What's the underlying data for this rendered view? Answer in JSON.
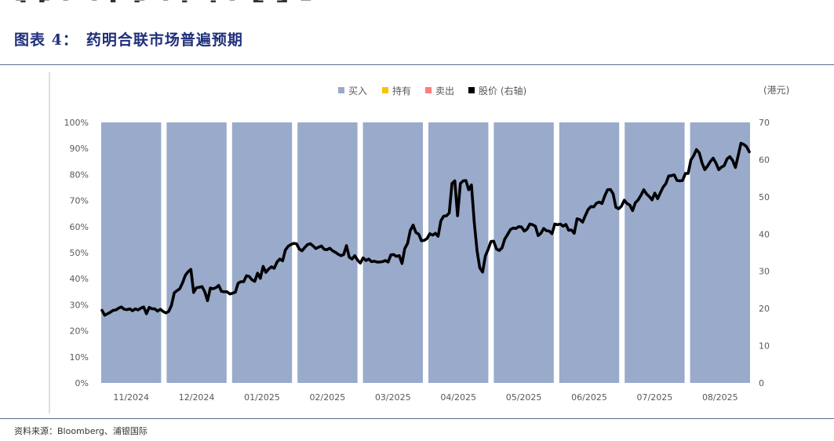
{
  "header": {
    "figure_label": "图表 4：",
    "title": "药明合联市场普遍预期"
  },
  "footer": {
    "source": "资料来源：Bloomberg、浦银国际"
  },
  "colors": {
    "buy": "#99AACB",
    "hold": "#FFC000",
    "sell": "#FF7C80",
    "price": "#000000",
    "title": "#1F2F7A"
  },
  "chart_data": {
    "type": "bar+line",
    "categories": [
      "11/2024",
      "12/2024",
      "01/2025",
      "02/2025",
      "03/2025",
      "04/2025",
      "05/2025",
      "06/2025",
      "07/2025",
      "08/2025"
    ],
    "series": [
      {
        "name": "买入",
        "axis": "left",
        "values": [
          100,
          100,
          100,
          100,
          100,
          100,
          100,
          100,
          100,
          100
        ]
      },
      {
        "name": "持有",
        "axis": "left",
        "values": [
          0,
          0,
          0,
          0,
          0,
          0,
          0,
          0,
          0,
          0
        ]
      },
      {
        "name": "卖出",
        "axis": "left",
        "values": [
          0,
          0,
          0,
          0,
          0,
          0,
          0,
          0,
          0,
          0
        ]
      }
    ],
    "price_series": {
      "name": "股价 (右轴)",
      "axis": "right",
      "values": [
        19.5,
        18.2,
        18.6,
        19.0,
        19.5,
        19.6,
        20.1,
        20.4,
        19.8,
        19.7,
        19.9,
        19.4,
        19.9,
        19.6,
        20.1,
        20.4,
        18.6,
        20.3,
        19.9,
        19.9,
        19.3,
        19.8,
        19.2,
        18.8,
        19.2,
        20.8,
        24.2,
        24.8,
        25.3,
        26.9,
        28.9,
        29.9,
        30.5,
        24.3,
        25.6,
        25.7,
        25.9,
        24.5,
        22.1,
        25.5,
        25.3,
        25.6,
        26.2,
        24.6,
        24.5,
        24.5,
        23.9,
        24.1,
        24.4,
        26.8,
        27.2,
        27.2,
        28.8,
        28.6,
        27.7,
        27.3,
        29.5,
        28.1,
        31.3,
        29.7,
        30.6,
        31.2,
        30.8,
        32.5,
        33.3,
        32.8,
        35.7,
        36.7,
        37.2,
        37.5,
        37.4,
        36.0,
        35.5,
        36.4,
        37.2,
        37.4,
        36.8,
        36.1,
        36.5,
        36.8,
        35.9,
        35.8,
        36.2,
        35.5,
        35.1,
        34.6,
        34.2,
        34.5,
        36.9,
        33.8,
        33.3,
        34.2,
        33.0,
        32.2,
        33.6,
        32.9,
        33.3,
        32.6,
        32.7,
        32.5,
        32.5,
        32.6,
        32.9,
        32.5,
        34.4,
        34.5,
        34.0,
        34.2,
        32.1,
        36.1,
        37.5,
        41.0,
        42.4,
        40.4,
        40.0,
        38.2,
        38.3,
        38.8,
        40.1,
        39.7,
        40.2,
        39.4,
        43.6,
        44.8,
        44.9,
        45.7,
        53.6,
        54.3,
        44.9,
        53.6,
        54.3,
        54.4,
        51.9,
        53.2,
        43.1,
        35.6,
        30.9,
        29.8,
        34.1,
        35.9,
        38.0,
        38.1,
        36.0,
        35.6,
        36.3,
        38.7,
        39.9,
        41.2,
        41.6,
        41.5,
        42.0,
        41.9,
        40.8,
        41.3,
        42.7,
        42.5,
        42.1,
        39.6,
        40.2,
        41.5,
        40.9,
        40.8,
        40.1,
        42.7,
        42.5,
        42.7,
        42.1,
        42.6,
        41.0,
        41.1,
        40.2,
        44.1,
        43.9,
        43.2,
        45.0,
        46.6,
        47.4,
        47.3,
        48.3,
        48.6,
        48.2,
        50.3,
        51.9,
        52.0,
        50.8,
        47.2,
        46.8,
        47.5,
        49.1,
        48.2,
        47.8,
        46.3,
        48.4,
        49.2,
        50.4,
        51.9,
        50.8,
        50.1,
        49.2,
        51.0,
        49.5,
        51.1,
        52.6,
        53.6,
        55.6,
        55.7,
        55.9,
        54.4,
        54.3,
        54.4,
        56.3,
        56.3,
        59.9,
        61.1,
        62.7,
        61.8,
        59.1,
        57.3,
        58.3,
        59.5,
        60.4,
        59.1,
        57.3,
        58.0,
        58.4,
        60.2,
        60.8,
        59.8,
        57.9,
        61.0,
        64.4,
        64.1,
        63.5,
        62.1
      ],
      "price_axis_ticks": [
        0,
        10,
        20,
        30,
        40,
        50,
        60,
        70
      ],
      "price_ylim": [
        0,
        70
      ]
    },
    "left_axis_ticks": [
      "0%",
      "10%",
      "20%",
      "30%",
      "40%",
      "50%",
      "60%",
      "70%",
      "80%",
      "90%",
      "100%"
    ],
    "right_axis_ticks": [
      "0",
      "10",
      "20",
      "30",
      "40",
      "50",
      "60",
      "70"
    ],
    "right_axis_unit": "(港元)",
    "ylim_left": [
      0,
      100
    ],
    "legend": [
      "买入",
      "持有",
      "卖出",
      "股价 (右轴)"
    ],
    "legend_position": "top-center"
  }
}
